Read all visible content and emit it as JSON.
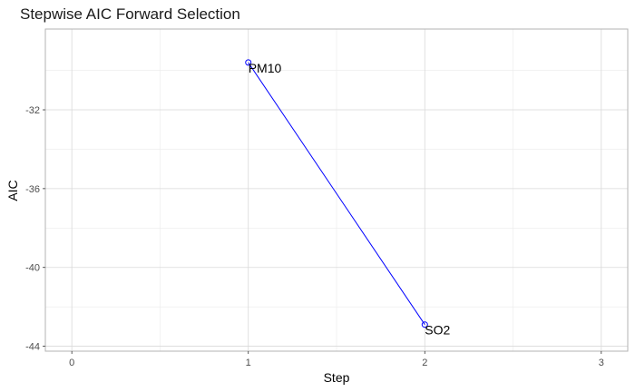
{
  "chart_data": {
    "type": "line",
    "title": "Stepwise AIC Forward Selection",
    "xlabel": "Step",
    "ylabel": "AIC",
    "xlim": [
      -0.15,
      3.15
    ],
    "ylim": [
      -44.25,
      -27.9
    ],
    "x_ticks": [
      0,
      1,
      2,
      3
    ],
    "y_ticks": [
      -44,
      -40,
      -36,
      -32
    ],
    "grid": true,
    "series": [
      {
        "x": [
          1,
          2
        ],
        "y": [
          -29.6,
          -42.9
        ],
        "labels": [
          "PM10",
          "SO2"
        ]
      }
    ],
    "colors": {
      "line": "#0000ff",
      "point": "#0000ff",
      "grid_major": "#d9d9d9",
      "grid_minor": "#ebebeb",
      "panel_border": "#b3b3b3"
    }
  }
}
